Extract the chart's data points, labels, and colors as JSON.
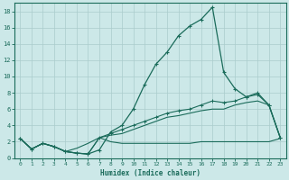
{
  "xlabel": "Humidex (Indice chaleur)",
  "bg_color": "#cce8e8",
  "line_color": "#1a6b5a",
  "grid_color": "#aacccc",
  "xlim": [
    -0.5,
    23.5
  ],
  "ylim": [
    0,
    19
  ],
  "xticks": [
    0,
    1,
    2,
    3,
    4,
    5,
    6,
    7,
    8,
    9,
    10,
    11,
    12,
    13,
    14,
    15,
    16,
    17,
    18,
    19,
    20,
    21,
    22,
    23
  ],
  "yticks": [
    0,
    2,
    4,
    6,
    8,
    10,
    12,
    14,
    16,
    18
  ],
  "line1_x": [
    0,
    1,
    2,
    3,
    4,
    5,
    6,
    7,
    8,
    9,
    10,
    11,
    12,
    13,
    14,
    15,
    16,
    17,
    18,
    19,
    20,
    21,
    22,
    23
  ],
  "line1_y": [
    2.4,
    1.1,
    1.8,
    1.4,
    0.8,
    0.6,
    0.5,
    1.0,
    3.2,
    4.0,
    6.0,
    9.0,
    11.5,
    13.0,
    15.0,
    16.2,
    17.0,
    18.5,
    10.5,
    8.5,
    7.5,
    7.8,
    6.5,
    2.5
  ],
  "line2_x": [
    0,
    1,
    2,
    3,
    4,
    5,
    6,
    7,
    8,
    9,
    10,
    11,
    12,
    13,
    14,
    15,
    16,
    17,
    18,
    19,
    20,
    21,
    22,
    23
  ],
  "line2_y": [
    2.4,
    1.1,
    1.8,
    1.4,
    0.8,
    0.6,
    0.5,
    2.5,
    3.0,
    3.5,
    4.0,
    4.5,
    5.0,
    5.5,
    5.8,
    6.0,
    6.5,
    7.0,
    6.8,
    7.0,
    7.5,
    8.0,
    6.5,
    2.5
  ],
  "line3_x": [
    0,
    1,
    2,
    3,
    4,
    5,
    6,
    7,
    8,
    9,
    10,
    11,
    12,
    13,
    14,
    15,
    16,
    17,
    18,
    19,
    20,
    21,
    22,
    23
  ],
  "line3_y": [
    2.4,
    1.1,
    1.8,
    1.4,
    0.8,
    0.6,
    0.5,
    2.5,
    2.8,
    3.0,
    3.5,
    4.0,
    4.5,
    5.0,
    5.2,
    5.5,
    5.8,
    6.0,
    6.0,
    6.5,
    6.8,
    7.0,
    6.5,
    2.5
  ],
  "line4_x": [
    0,
    1,
    2,
    3,
    4,
    5,
    6,
    7,
    8,
    9,
    10,
    11,
    12,
    13,
    14,
    15,
    16,
    17,
    18,
    19,
    20,
    21,
    22,
    23
  ],
  "line4_y": [
    2.4,
    1.1,
    1.8,
    1.4,
    0.8,
    1.2,
    1.8,
    2.5,
    2.0,
    1.8,
    1.8,
    1.8,
    1.8,
    1.8,
    1.8,
    1.8,
    2.0,
    2.0,
    2.0,
    2.0,
    2.0,
    2.0,
    2.0,
    2.4
  ]
}
